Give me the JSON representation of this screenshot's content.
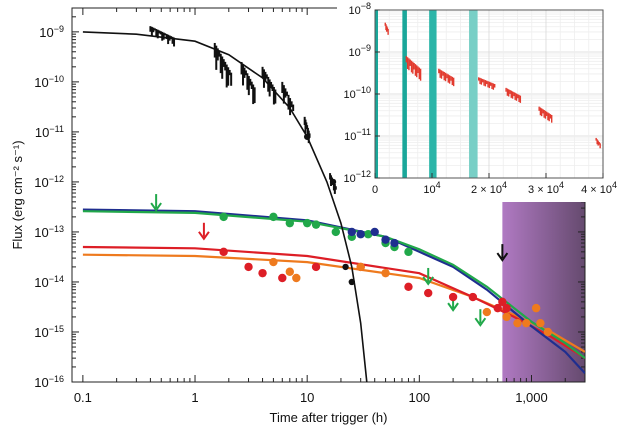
{
  "chart_data": [
    {
      "type": "scatter",
      "panel": "main",
      "xscale": "log",
      "yscale": "log",
      "xlim": [
        0.08,
        3000
      ],
      "ylim": [
        1e-16,
        3e-09
      ],
      "xlabel": "Time after trigger (h)",
      "ylabel": "Flux (erg cm⁻² s⁻¹)",
      "x_ticks": [
        {
          "value": 0.1,
          "label": "0.1"
        },
        {
          "value": 1,
          "label": "1"
        },
        {
          "value": 10,
          "label": "10"
        },
        {
          "value": 100,
          "label": "100"
        },
        {
          "value": 1000,
          "label": "1,000"
        }
      ],
      "y_ticks": [
        {
          "value": 1e-16,
          "label": "10",
          "exp": "−16"
        },
        {
          "value": 1e-15,
          "label": "10",
          "exp": "−15"
        },
        {
          "value": 1e-14,
          "label": "10",
          "exp": "−14"
        },
        {
          "value": 1e-13,
          "label": "10",
          "exp": "−13"
        },
        {
          "value": 1e-12,
          "label": "10",
          "exp": "−12"
        },
        {
          "value": 1e-11,
          "label": "10",
          "exp": "−11"
        },
        {
          "value": 1e-10,
          "label": "10",
          "exp": "−10"
        },
        {
          "value": 1e-09,
          "label": "10",
          "exp": "−9"
        }
      ],
      "shaded_band": {
        "x_start": 550,
        "x_end": 3000,
        "color_start": "#a262b8",
        "color_end": "#4a2a55"
      },
      "series": [
        {
          "color": "#111111",
          "model_curve": [
            [
              0.1,
              1e-09
            ],
            [
              0.3,
              9e-10
            ],
            [
              1,
              6.5e-10
            ],
            [
              2,
              3.5e-10
            ],
            [
              4,
              1.2e-10
            ],
            [
              7,
              3e-11
            ],
            [
              10,
              8e-12
            ],
            [
              15,
              1e-12
            ],
            [
              20,
              1.5e-13
            ],
            [
              25,
              2e-14
            ],
            [
              30,
              1.5e-15
            ],
            [
              34,
              1e-16
            ]
          ],
          "segments": [
            {
              "x_start": 0.4,
              "x_end": 0.65,
              "y_top": 1.3e-09,
              "y_bottom": 5e-10
            },
            {
              "x_start": 1.5,
              "x_end": 2.1,
              "y_top": 6e-10,
              "y_bottom": 5e-11
            },
            {
              "x_start": 2.6,
              "x_end": 3.4,
              "y_top": 2.5e-10,
              "y_bottom": 3e-11
            },
            {
              "x_start": 4.0,
              "x_end": 5.2,
              "y_top": 2e-10,
              "y_bottom": 3e-11
            },
            {
              "x_start": 6.0,
              "x_end": 7.5,
              "y_top": 1e-10,
              "y_bottom": 1.5e-11
            },
            {
              "x_start": 9.5,
              "x_end": 10.5,
              "y_top": 2e-11,
              "y_bottom": 5e-12
            },
            {
              "x_start": 16,
              "x_end": 18,
              "y_top": 1.5e-12,
              "y_bottom": 5e-13
            }
          ],
          "points": [
            [
              10,
              8e-12
            ],
            [
              17,
              1e-12
            ],
            [
              22,
              2e-14
            ],
            [
              25,
              1e-14
            ]
          ]
        },
        {
          "color": "#21a84a",
          "model_curve": [
            [
              0.1,
              2.6e-13
            ],
            [
              1,
              2.4e-13
            ],
            [
              10,
              1.6e-13
            ],
            [
              50,
              8e-14
            ],
            [
              100,
              4.5e-14
            ],
            [
              200,
              2.2e-14
            ],
            [
              400,
              8e-15
            ],
            [
              700,
              3e-15
            ],
            [
              1000,
              1.6e-15
            ],
            [
              2000,
              6e-16
            ],
            [
              3000,
              3e-16
            ]
          ],
          "points": [
            [
              1.8,
              2e-13
            ],
            [
              5,
              2e-13
            ],
            [
              7,
              1.5e-13
            ],
            [
              10,
              1.5e-13
            ],
            [
              12,
              1.4e-13
            ],
            [
              18,
              1e-13
            ],
            [
              25,
              8e-14
            ],
            [
              35,
              9e-14
            ],
            [
              50,
              6e-14
            ],
            [
              60,
              5e-14
            ],
            [
              80,
              4e-14
            ]
          ],
          "upper_limits": [
            [
              0.45,
              3e-13
            ],
            [
              120,
              1e-14
            ],
            [
              200,
              3e-15
            ],
            [
              350,
              1.5e-15
            ]
          ]
        },
        {
          "color": "#1f2e8f",
          "model_curve": [
            [
              0.1,
              2.8e-13
            ],
            [
              1,
              2.6e-13
            ],
            [
              10,
              1.7e-13
            ],
            [
              50,
              8e-14
            ],
            [
              100,
              4e-14
            ],
            [
              200,
              2e-14
            ],
            [
              400,
              7e-15
            ],
            [
              700,
              2.5e-15
            ],
            [
              1000,
              1.3e-15
            ],
            [
              2000,
              4e-16
            ],
            [
              3000,
              1.5e-16
            ]
          ],
          "points": [
            [
              25,
              1e-13
            ],
            [
              30,
              9e-14
            ],
            [
              40,
              1e-13
            ],
            [
              50,
              7e-14
            ],
            [
              60,
              6e-14
            ]
          ]
        },
        {
          "color": "#dd1e26",
          "model_curve": [
            [
              0.1,
              5e-14
            ],
            [
              1,
              4.7e-14
            ],
            [
              10,
              3.3e-14
            ],
            [
              100,
              1.5e-14
            ],
            [
              300,
              5e-15
            ],
            [
              700,
              2e-15
            ],
            [
              1500,
              8e-16
            ],
            [
              3000,
              3e-16
            ]
          ],
          "points": [
            [
              1.8,
              4e-14
            ],
            [
              3,
              2e-14
            ],
            [
              4,
              1.5e-14
            ],
            [
              6,
              1.2e-14
            ],
            [
              12,
              2e-14
            ],
            [
              30,
              2e-14
            ],
            [
              80,
              8e-15
            ],
            [
              120,
              6e-15
            ],
            [
              200,
              5e-15
            ],
            [
              300,
              5e-15
            ],
            [
              500,
              3e-15
            ],
            [
              550,
              4e-15
            ],
            [
              600,
              3e-15
            ]
          ],
          "upper_limits": [
            [
              1.2,
              8e-14
            ]
          ]
        },
        {
          "color": "#ee7a1e",
          "model_curve": [
            [
              0.1,
              3.5e-14
            ],
            [
              1,
              3.3e-14
            ],
            [
              10,
              2.5e-14
            ],
            [
              100,
              1.2e-14
            ],
            [
              300,
              5e-15
            ],
            [
              700,
              2.2e-15
            ],
            [
              1500,
              1e-15
            ],
            [
              3000,
              4e-16
            ]
          ],
          "points": [
            [
              5,
              2.5e-14
            ],
            [
              7,
              1.6e-14
            ],
            [
              8,
              1.2e-14
            ],
            [
              30,
              2e-14
            ],
            [
              50,
              1.5e-14
            ],
            [
              400,
              2.5e-15
            ],
            [
              600,
              2e-15
            ],
            [
              750,
              1.5e-15
            ],
            [
              900,
              1.5e-15
            ],
            [
              1100,
              3e-15
            ],
            [
              1200,
              1.5e-15
            ],
            [
              1400,
              1e-15
            ]
          ]
        }
      ],
      "black_upper_limit": [
        550,
        3e-14
      ]
    },
    {
      "type": "scatter",
      "panel": "inset",
      "yscale": "log",
      "xlim": [
        0,
        40000
      ],
      "ylim": [
        1e-12,
        1e-08
      ],
      "x_ticks": [
        {
          "value": 0,
          "label": "0",
          "exp": ""
        },
        {
          "value": 10000,
          "label": "10",
          "exp": "4"
        },
        {
          "value": 20000,
          "label": "2 × 10",
          "exp": "4"
        },
        {
          "value": 30000,
          "label": "3 × 10",
          "exp": "4"
        },
        {
          "value": 40000,
          "label": "4 × 10",
          "exp": "4"
        }
      ],
      "y_ticks": [
        {
          "value": 1e-08,
          "label": "10",
          "exp": "−8"
        },
        {
          "value": 1e-09,
          "label": "10",
          "exp": "−9"
        },
        {
          "value": 1e-10,
          "label": "10",
          "exp": "−10"
        },
        {
          "value": 1e-11,
          "label": "10",
          "exp": "−11"
        },
        {
          "value": 1e-12,
          "label": "10",
          "exp": "−12"
        }
      ],
      "bands": [
        {
          "x_start": 0,
          "x_end": 500,
          "color": "#1aa79a"
        },
        {
          "x_start": 4800,
          "x_end": 5600,
          "color": "#1aa79a"
        },
        {
          "x_start": 9500,
          "x_end": 10800,
          "color": "#2bb5a8"
        },
        {
          "x_start": 16500,
          "x_end": 18000,
          "color": "#78cfc6"
        }
      ],
      "series": [
        {
          "color": "#e23a2e",
          "clusters": [
            {
              "x_start": 1800,
              "x_end": 2300,
              "y_low": 2.5e-09,
              "y_high": 5e-09
            },
            {
              "x_start": 5500,
              "x_end": 8000,
              "y_low": 2e-10,
              "y_high": 8e-10
            },
            {
              "x_start": 11200,
              "x_end": 13800,
              "y_low": 1.5e-10,
              "y_high": 4e-10
            },
            {
              "x_start": 18200,
              "x_end": 21000,
              "y_low": 1.2e-10,
              "y_high": 2.5e-10
            },
            {
              "x_start": 23000,
              "x_end": 25500,
              "y_low": 6e-11,
              "y_high": 1.4e-10
            },
            {
              "x_start": 28800,
              "x_end": 31000,
              "y_low": 2e-11,
              "y_high": 5e-11
            },
            {
              "x_start": 38800,
              "x_end": 39500,
              "y_low": 5e-12,
              "y_high": 9e-12
            }
          ]
        }
      ]
    }
  ]
}
